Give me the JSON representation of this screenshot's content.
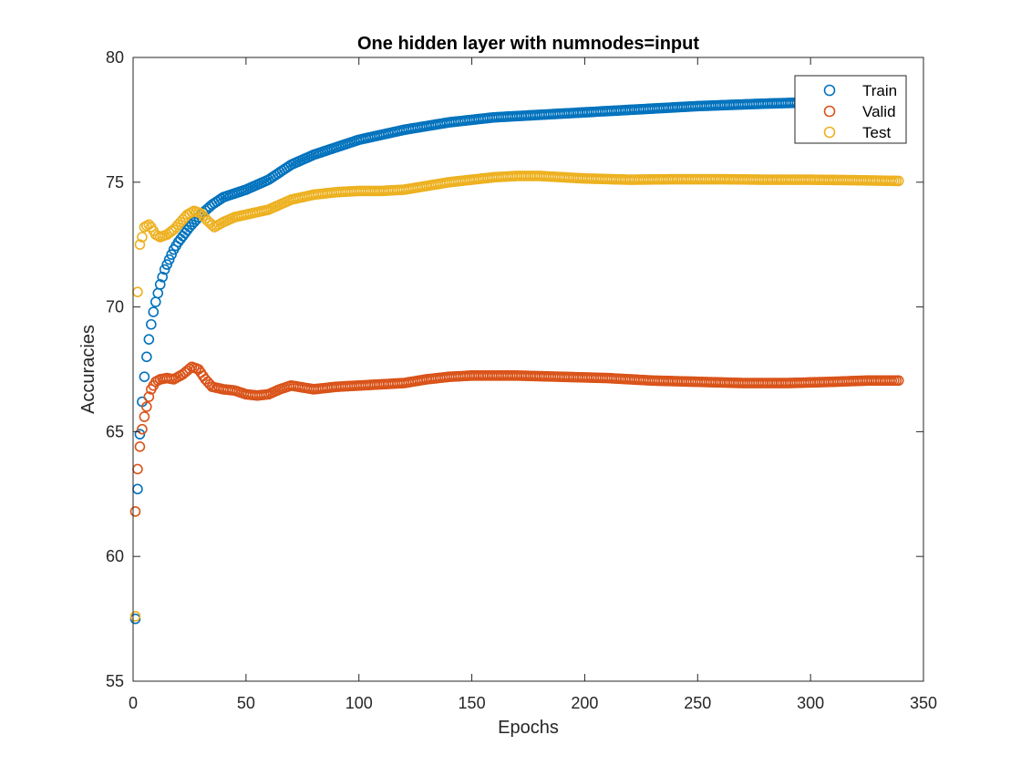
{
  "chart_data": {
    "type": "scatter",
    "title": "One hidden layer with numnodes=input",
    "xlabel": "Epochs",
    "ylabel": "Accuracies",
    "xlim": [
      0,
      350
    ],
    "ylim": [
      55,
      80
    ],
    "xticks": [
      "0",
      "50",
      "100",
      "150",
      "200",
      "250",
      "300",
      "350"
    ],
    "yticks": [
      "55",
      "60",
      "65",
      "70",
      "75",
      "80"
    ],
    "xtick_values": [
      0,
      50,
      100,
      150,
      200,
      250,
      300,
      350
    ],
    "ytick_values": [
      55,
      60,
      65,
      70,
      75,
      80
    ],
    "grid": false,
    "legend_position": "top-right",
    "x_range": [
      1,
      339
    ],
    "series": [
      {
        "name": "Train",
        "color": "#0072BD",
        "marker": "circle-open",
        "control_points": [
          [
            1,
            57.5
          ],
          [
            2,
            62.7
          ],
          [
            3,
            64.9
          ],
          [
            4,
            66.2
          ],
          [
            5,
            67.2
          ],
          [
            6,
            68.0
          ],
          [
            7,
            68.7
          ],
          [
            8,
            69.3
          ],
          [
            9,
            69.8
          ],
          [
            10,
            70.2
          ],
          [
            12,
            70.9
          ],
          [
            14,
            71.5
          ],
          [
            16,
            71.9
          ],
          [
            18,
            72.3
          ],
          [
            20,
            72.6
          ],
          [
            25,
            73.2
          ],
          [
            30,
            73.7
          ],
          [
            35,
            74.1
          ],
          [
            40,
            74.4
          ],
          [
            50,
            74.7
          ],
          [
            60,
            75.1
          ],
          [
            70,
            75.7
          ],
          [
            80,
            76.1
          ],
          [
            90,
            76.4
          ],
          [
            100,
            76.7
          ],
          [
            120,
            77.1
          ],
          [
            140,
            77.4
          ],
          [
            160,
            77.6
          ],
          [
            180,
            77.7
          ],
          [
            200,
            77.8
          ],
          [
            220,
            77.9
          ],
          [
            250,
            78.05
          ],
          [
            280,
            78.15
          ],
          [
            300,
            78.2
          ],
          [
            320,
            78.25
          ],
          [
            339,
            78.3
          ]
        ]
      },
      {
        "name": "Valid",
        "color": "#D95319",
        "marker": "circle-open",
        "control_points": [
          [
            1,
            61.8
          ],
          [
            2,
            63.5
          ],
          [
            3,
            64.4
          ],
          [
            4,
            65.1
          ],
          [
            5,
            65.6
          ],
          [
            6,
            66.0
          ],
          [
            7,
            66.4
          ],
          [
            8,
            66.7
          ],
          [
            9,
            66.85
          ],
          [
            10,
            67.0
          ],
          [
            12,
            67.1
          ],
          [
            15,
            67.15
          ],
          [
            18,
            67.1
          ],
          [
            22,
            67.3
          ],
          [
            26,
            67.6
          ],
          [
            29,
            67.5
          ],
          [
            32,
            67.1
          ],
          [
            35,
            66.8
          ],
          [
            40,
            66.7
          ],
          [
            45,
            66.65
          ],
          [
            50,
            66.5
          ],
          [
            55,
            66.45
          ],
          [
            60,
            66.5
          ],
          [
            65,
            66.7
          ],
          [
            70,
            66.85
          ],
          [
            80,
            66.7
          ],
          [
            90,
            66.8
          ],
          [
            100,
            66.85
          ],
          [
            110,
            66.9
          ],
          [
            120,
            66.95
          ],
          [
            130,
            67.1
          ],
          [
            140,
            67.2
          ],
          [
            150,
            67.25
          ],
          [
            170,
            67.25
          ],
          [
            190,
            67.2
          ],
          [
            210,
            67.15
          ],
          [
            230,
            67.05
          ],
          [
            250,
            67.0
          ],
          [
            270,
            66.95
          ],
          [
            290,
            66.95
          ],
          [
            310,
            67.0
          ],
          [
            325,
            67.05
          ],
          [
            339,
            67.05
          ]
        ]
      },
      {
        "name": "Test",
        "color": "#EDB120",
        "marker": "circle-open",
        "control_points": [
          [
            1,
            57.6
          ],
          [
            2,
            70.6
          ],
          [
            3,
            72.5
          ],
          [
            4,
            72.8
          ],
          [
            5,
            73.2
          ],
          [
            6,
            73.25
          ],
          [
            7,
            73.3
          ],
          [
            8,
            73.2
          ],
          [
            10,
            72.9
          ],
          [
            12,
            72.8
          ],
          [
            15,
            72.9
          ],
          [
            18,
            73.1
          ],
          [
            21,
            73.4
          ],
          [
            24,
            73.7
          ],
          [
            27,
            73.85
          ],
          [
            30,
            73.75
          ],
          [
            33,
            73.45
          ],
          [
            36,
            73.2
          ],
          [
            40,
            73.4
          ],
          [
            45,
            73.6
          ],
          [
            50,
            73.7
          ],
          [
            60,
            73.9
          ],
          [
            70,
            74.3
          ],
          [
            80,
            74.5
          ],
          [
            90,
            74.6
          ],
          [
            100,
            74.65
          ],
          [
            110,
            74.65
          ],
          [
            120,
            74.7
          ],
          [
            130,
            74.85
          ],
          [
            140,
            75.0
          ],
          [
            150,
            75.1
          ],
          [
            160,
            75.2
          ],
          [
            170,
            75.25
          ],
          [
            180,
            75.25
          ],
          [
            190,
            75.2
          ],
          [
            200,
            75.15
          ],
          [
            220,
            75.1
          ],
          [
            240,
            75.12
          ],
          [
            260,
            75.12
          ],
          [
            280,
            75.1
          ],
          [
            300,
            75.1
          ],
          [
            320,
            75.08
          ],
          [
            339,
            75.05
          ]
        ]
      }
    ]
  }
}
